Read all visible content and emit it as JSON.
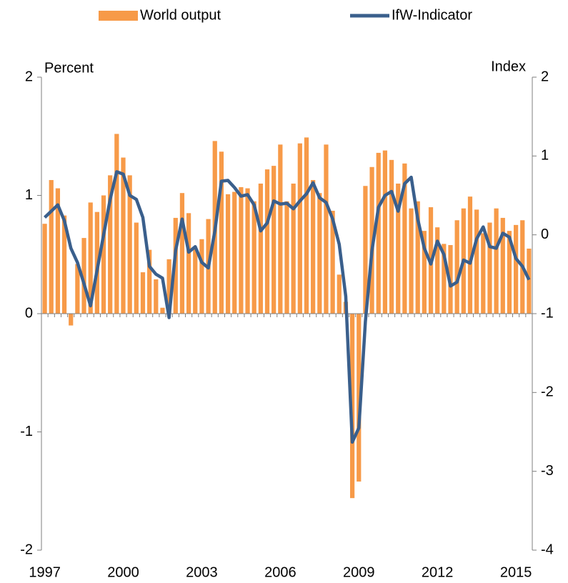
{
  "chart_data": {
    "type": "bar_line",
    "categories": [
      "1997",
      null,
      null,
      null,
      null,
      null,
      null,
      null,
      null,
      null,
      null,
      null,
      "2000",
      null,
      null,
      null,
      null,
      null,
      null,
      null,
      null,
      null,
      null,
      null,
      "2003",
      null,
      null,
      null,
      null,
      null,
      null,
      null,
      null,
      null,
      null,
      null,
      "2006",
      null,
      null,
      null,
      null,
      null,
      null,
      null,
      null,
      null,
      null,
      null,
      "2009",
      null,
      null,
      null,
      null,
      null,
      null,
      null,
      null,
      null,
      null,
      null,
      "2012",
      null,
      null,
      null,
      null,
      null,
      null,
      null,
      null,
      null,
      null,
      null,
      "2015",
      null,
      null
    ],
    "y_label": "Percent",
    "y2_label": "Index",
    "ylim": [
      -2,
      2
    ],
    "yticks": [
      -2,
      -1,
      0,
      1,
      2
    ],
    "y2lim": [
      -4,
      2
    ],
    "y2ticks": [
      -4,
      -3,
      -2,
      -1,
      0,
      1,
      2
    ],
    "series": [
      {
        "name": "World output",
        "type": "bar",
        "color": "#f79a48",
        "values": [
          0.76,
          1.13,
          1.06,
          0.83,
          -0.1,
          0.42,
          0.64,
          0.94,
          0.86,
          1.0,
          1.17,
          1.52,
          1.32,
          1.17,
          0.77,
          0.35,
          0.54,
          0.29,
          0.05,
          0.46,
          0.81,
          1.02,
          0.85,
          0.55,
          0.63,
          0.8,
          1.46,
          1.37,
          1.01,
          1.03,
          1.07,
          1.06,
          0.95,
          1.1,
          1.22,
          1.25,
          1.43,
          0.95,
          1.1,
          1.44,
          1.49,
          1.13,
          1.02,
          1.43,
          0.87,
          0.33,
          0.1,
          -1.56,
          -1.42,
          1.08,
          1.24,
          1.36,
          1.38,
          1.3,
          1.1,
          1.27,
          0.89,
          0.95,
          0.7,
          0.9,
          0.73,
          0.59,
          0.58,
          0.79,
          0.89,
          0.99,
          0.88,
          0.68,
          0.77,
          0.89,
          0.81,
          0.7,
          0.75,
          0.79,
          0.55
        ]
      },
      {
        "name": "IfW-Indicator",
        "type": "line",
        "axis": "y2",
        "color": "#3a5f8c",
        "values": [
          0.22,
          0.3,
          0.38,
          0.18,
          -0.17,
          -0.35,
          -0.62,
          -0.9,
          -0.45,
          0.0,
          0.45,
          0.8,
          0.77,
          0.5,
          0.45,
          0.22,
          -0.4,
          -0.5,
          -0.55,
          -1.05,
          -0.2,
          0.2,
          -0.22,
          -0.15,
          -0.35,
          -0.42,
          0.05,
          0.68,
          0.69,
          0.6,
          0.49,
          0.51,
          0.38,
          0.05,
          0.15,
          0.43,
          0.39,
          0.4,
          0.33,
          0.43,
          0.52,
          0.66,
          0.47,
          0.41,
          0.2,
          -0.12,
          -0.78,
          -2.63,
          -2.45,
          -1.1,
          -0.2,
          0.35,
          0.5,
          0.55,
          0.3,
          0.65,
          0.73,
          0.2,
          -0.17,
          -0.37,
          -0.08,
          -0.25,
          -0.65,
          -0.6,
          -0.32,
          -0.36,
          -0.05,
          0.1,
          -0.15,
          -0.17,
          0.02,
          -0.03,
          -0.3,
          -0.4,
          -0.57
        ]
      }
    ]
  }
}
